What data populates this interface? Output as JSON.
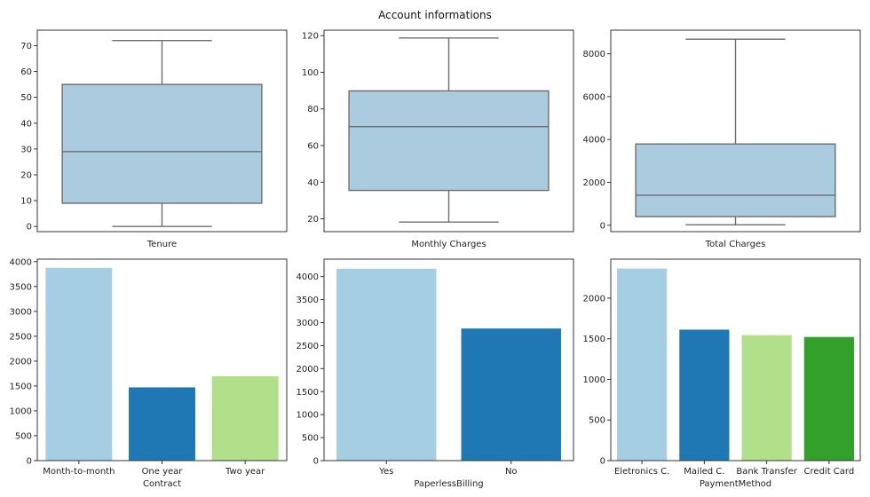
{
  "figure": {
    "title": "Account informations"
  },
  "colors": {
    "box_fill": "#abcbdf",
    "box_line": "#6e6e6e",
    "bars": [
      "#a6cee3",
      "#1f78b4",
      "#b2df8a",
      "#33a02c"
    ],
    "axis": "#333333"
  },
  "chart_data": [
    {
      "type": "box",
      "xlabel": "Tenure",
      "ylabel": "",
      "ylim": [
        -2,
        76
      ],
      "yticks": [
        0,
        10,
        20,
        30,
        40,
        50,
        60,
        70
      ],
      "box": {
        "min": 0,
        "q1": 9,
        "median": 29,
        "q3": 55,
        "max": 72
      }
    },
    {
      "type": "box",
      "xlabel": "Monthly Charges",
      "ylabel": "",
      "ylim": [
        13,
        123
      ],
      "yticks": [
        20,
        40,
        60,
        80,
        100,
        120
      ],
      "box": {
        "min": 18.25,
        "q1": 35.5,
        "median": 70.35,
        "q3": 89.85,
        "max": 118.75
      }
    },
    {
      "type": "box",
      "xlabel": "Total Charges",
      "ylabel": "",
      "ylim": [
        -300,
        9100
      ],
      "yticks": [
        0,
        2000,
        4000,
        6000,
        8000
      ],
      "box": {
        "min": 19,
        "q1": 400,
        "median": 1400,
        "q3": 3790,
        "max": 8680
      }
    },
    {
      "type": "bar",
      "xlabel": "Contract",
      "ylabel": "",
      "ylim": [
        0,
        4050
      ],
      "yticks": [
        0,
        500,
        1000,
        1500,
        2000,
        2500,
        3000,
        3500,
        4000
      ],
      "categories": [
        "Month-to-month",
        "One year",
        "Two year"
      ],
      "values": [
        3875,
        1473,
        1695
      ]
    },
    {
      "type": "bar",
      "xlabel": "PaperlessBilling",
      "ylabel": "",
      "ylim": [
        0,
        4380
      ],
      "yticks": [
        0,
        500,
        1000,
        1500,
        2000,
        2500,
        3000,
        3500,
        4000
      ],
      "categories": [
        "Yes",
        "No"
      ],
      "values": [
        4171,
        2872
      ]
    },
    {
      "type": "bar",
      "xlabel": "PaymentMethod",
      "ylabel": "",
      "ylim": [
        0,
        2480
      ],
      "yticks": [
        0,
        500,
        1000,
        1500,
        2000
      ],
      "categories": [
        "Eletronics C.",
        "Mailed C.",
        "Bank Transfer",
        "Credit Card"
      ],
      "values": [
        2365,
        1612,
        1544,
        1522
      ]
    }
  ]
}
